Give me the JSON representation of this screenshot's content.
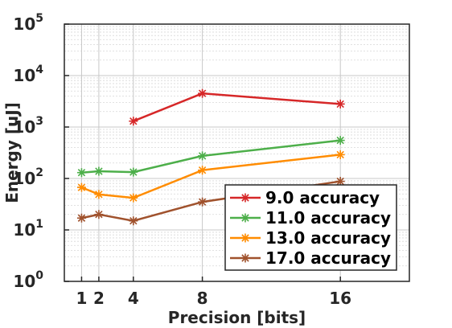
{
  "chart_data": {
    "type": "line",
    "title": "",
    "xlabel": "Precision [bits]",
    "ylabel": "Energy [uJ]",
    "x_ticks": [
      1,
      2,
      4,
      8,
      16
    ],
    "y_scale": "log",
    "ylim": [
      1,
      100000
    ],
    "xlim": [
      0,
      20
    ],
    "y_ticks": [
      {
        "base": "10",
        "exp": "0"
      },
      {
        "base": "10",
        "exp": "1"
      },
      {
        "base": "10",
        "exp": "2"
      },
      {
        "base": "10",
        "exp": "3"
      },
      {
        "base": "10",
        "exp": "4"
      },
      {
        "base": "10",
        "exp": "5"
      }
    ],
    "grid": true,
    "legend_position": "bottom-right",
    "series": [
      {
        "name": "9.0 accuracy",
        "color": "#d62728",
        "x": [
          4,
          8,
          16
        ],
        "y": [
          1300,
          4500,
          2800
        ]
      },
      {
        "name": "11.0 accuracy",
        "color": "#4daf4a",
        "x": [
          1,
          2,
          4,
          8,
          16
        ],
        "y": [
          130,
          138,
          133,
          275,
          550
        ]
      },
      {
        "name": "13.0 accuracy",
        "color": "#ff8c00",
        "x": [
          1,
          2,
          4,
          8,
          16
        ],
        "y": [
          67,
          49,
          42,
          145,
          290
        ]
      },
      {
        "name": "17.0 accuracy",
        "color": "#a0522d",
        "x": [
          1,
          2,
          4,
          8,
          16
        ],
        "y": [
          17,
          20,
          15,
          35,
          88
        ]
      }
    ]
  }
}
